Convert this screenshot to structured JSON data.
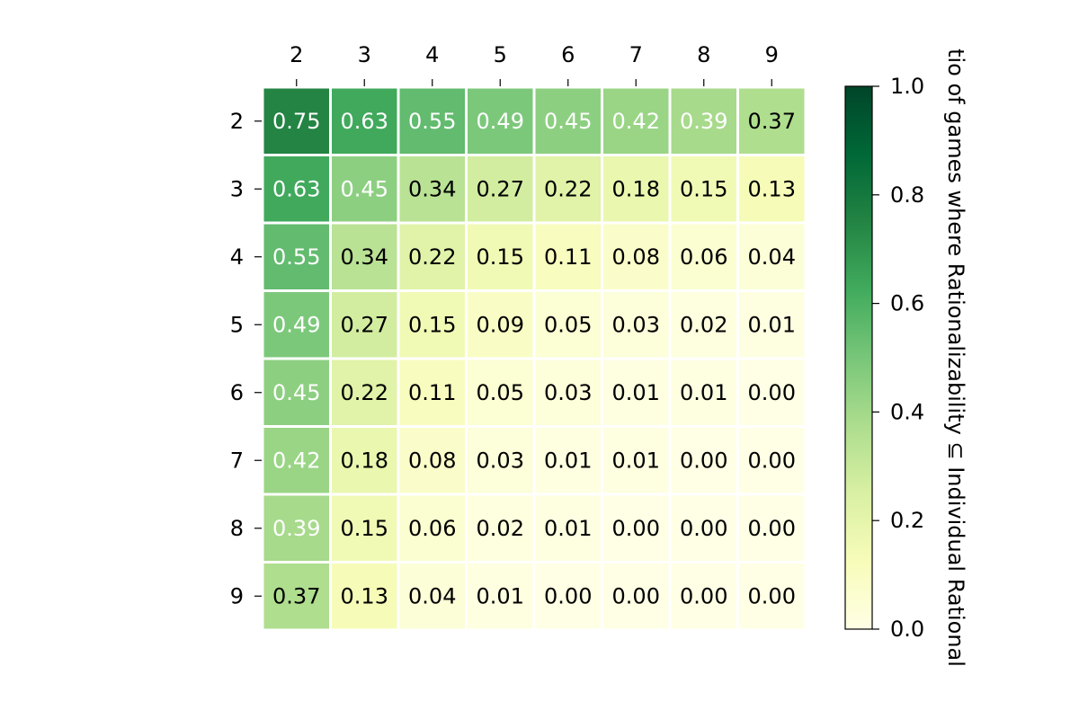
{
  "chart_data": {
    "type": "heatmap",
    "x_categories": [
      "2",
      "3",
      "4",
      "5",
      "6",
      "7",
      "8",
      "9"
    ],
    "y_categories": [
      "2",
      "3",
      "4",
      "5",
      "6",
      "7",
      "8",
      "9"
    ],
    "values": [
      [
        0.75,
        0.63,
        0.55,
        0.49,
        0.45,
        0.42,
        0.39,
        0.37
      ],
      [
        0.63,
        0.45,
        0.34,
        0.27,
        0.22,
        0.18,
        0.15,
        0.13
      ],
      [
        0.55,
        0.34,
        0.22,
        0.15,
        0.11,
        0.08,
        0.06,
        0.04
      ],
      [
        0.49,
        0.27,
        0.15,
        0.09,
        0.05,
        0.03,
        0.02,
        0.01
      ],
      [
        0.45,
        0.22,
        0.11,
        0.05,
        0.03,
        0.01,
        0.01,
        0.0
      ],
      [
        0.42,
        0.18,
        0.08,
        0.03,
        0.01,
        0.01,
        0.0,
        0.0
      ],
      [
        0.39,
        0.15,
        0.06,
        0.02,
        0.01,
        0.0,
        0.0,
        0.0
      ],
      [
        0.37,
        0.13,
        0.04,
        0.01,
        0.0,
        0.0,
        0.0,
        0.0
      ]
    ],
    "x_axis_position": "top",
    "colormap": "YlGn",
    "vmin": 0.0,
    "vmax": 1.0,
    "colorbar": {
      "label": "tio of games where Rationalizability  ⊆  Individual Rational",
      "ticks": [
        "0.0",
        "0.2",
        "0.4",
        "0.6",
        "0.8",
        "1.0"
      ]
    },
    "cell_text_light_threshold": 0.37,
    "colors": {
      "light_text": "#ffffff",
      "dark_text": "#000000",
      "cell_border": "#ffffff"
    }
  }
}
